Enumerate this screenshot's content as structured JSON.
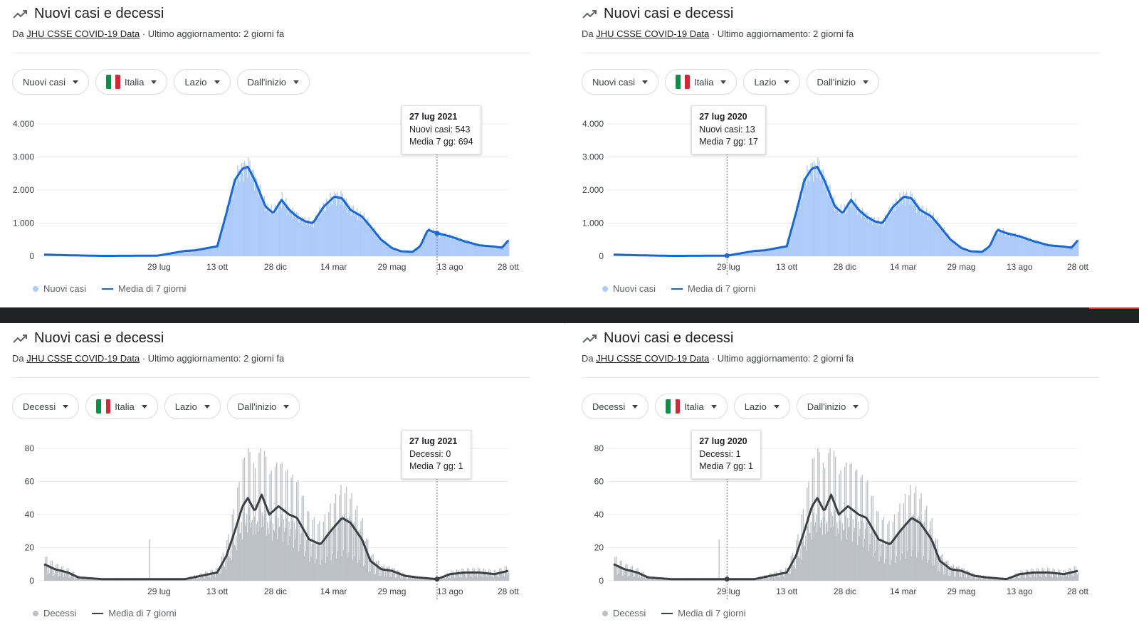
{
  "panels": [
    {
      "title": "Nuovi casi e decessi",
      "source_prefix": "Da",
      "source_link": "JHU CSSE COVID-19 Data",
      "updated": "· Ultimo aggiornamento: 2 giorni fa",
      "filters": [
        "Nuovi casi",
        "Italia",
        "Lazio",
        "Dall'inizio"
      ],
      "tooltip": {
        "date": "27 lug 2021",
        "line1": "Nuovi casi: 543",
        "line2": "Media 7 gg: 694"
      },
      "legend": [
        "Nuovi casi",
        "Media di 7 giorni"
      ]
    },
    {
      "title": "Nuovi casi e decessi",
      "source_prefix": "Da",
      "source_link": "JHU CSSE COVID-19 Data",
      "updated": "· Ultimo aggiornamento: 2 giorni fa",
      "filters": [
        "Nuovi casi",
        "Italia",
        "Lazio",
        "Dall'inizio"
      ],
      "tooltip": {
        "date": "27 lug 2020",
        "line1": "Nuovi casi: 13",
        "line2": "Media 7 gg: 17"
      },
      "legend": [
        "Nuovi casi",
        "Media di 7 giorni"
      ]
    },
    {
      "title": "Nuovi casi e decessi",
      "source_prefix": "Da",
      "source_link": "JHU CSSE COVID-19 Data",
      "updated": "· Ultimo aggiornamento: 2 giorni fa",
      "filters": [
        "Decessi",
        "Italia",
        "Lazio",
        "Dall'inizio"
      ],
      "tooltip": {
        "date": "27 lug 2021",
        "line1": "Decessi: 0",
        "line2": "Media 7 gg: 1"
      },
      "legend": [
        "Decessi",
        "Media di 7 giorni"
      ]
    },
    {
      "title": "Nuovi casi e decessi",
      "source_prefix": "Da",
      "source_link": "JHU CSSE COVID-19 Data",
      "updated": "· Ultimo aggiornamento: 2 giorni fa",
      "filters": [
        "Decessi",
        "Italia",
        "Lazio",
        "Dall'inizio"
      ],
      "tooltip": {
        "date": "27 lug 2020",
        "line1": "Decessi: 1",
        "line2": "Media 7 gg: 1"
      },
      "legend": [
        "Decessi",
        "Media di 7 giorni"
      ]
    }
  ],
  "colors": {
    "cases_bar": "#aecbfa",
    "cases_line": "#1967d2",
    "deaths_bar": "#bdc1c6",
    "deaths_line": "#3c4043",
    "flag": [
      "#009246",
      "#ffffff",
      "#ce2b37"
    ]
  },
  "icons": {
    "trend": "trending-up-icon",
    "dropdown": "caret-down-icon",
    "flag": "italy-flag-icon"
  },
  "chart_data": [
    {
      "type": "area",
      "series": [
        {
          "name": "Nuovi casi",
          "kind": "bars"
        },
        {
          "name": "Media di 7 giorni",
          "kind": "line",
          "points": [
            [
              "2020-03-01",
              50
            ],
            [
              "2020-04-01",
              30
            ],
            [
              "2020-05-15",
              10
            ],
            [
              "2020-07-27",
              17
            ],
            [
              "2020-09-01",
              160
            ],
            [
              "2020-09-15",
              180
            ],
            [
              "2020-10-13",
              300
            ],
            [
              "2020-10-25",
              1300
            ],
            [
              "2020-11-05",
              2300
            ],
            [
              "2020-11-15",
              2650
            ],
            [
              "2020-11-22",
              2700
            ],
            [
              "2020-12-01",
              2300
            ],
            [
              "2020-12-15",
              1500
            ],
            [
              "2020-12-25",
              1300
            ],
            [
              "2021-01-05",
              1700
            ],
            [
              "2021-01-15",
              1400
            ],
            [
              "2021-01-25",
              1200
            ],
            [
              "2021-02-05",
              1050
            ],
            [
              "2021-02-15",
              1000
            ],
            [
              "2021-03-01",
              1500
            ],
            [
              "2021-03-15",
              1800
            ],
            [
              "2021-03-25",
              1750
            ],
            [
              "2021-04-05",
              1400
            ],
            [
              "2021-04-20",
              1200
            ],
            [
              "2021-05-01",
              900
            ],
            [
              "2021-05-15",
              500
            ],
            [
              "2021-05-29",
              250
            ],
            [
              "2021-06-10",
              150
            ],
            [
              "2021-06-25",
              130
            ],
            [
              "2021-07-05",
              300
            ],
            [
              "2021-07-15",
              800
            ],
            [
              "2021-07-27",
              694
            ],
            [
              "2021-08-13",
              600
            ],
            [
              "2021-09-01",
              450
            ],
            [
              "2021-09-20",
              330
            ],
            [
              "2021-10-10",
              290
            ],
            [
              "2021-10-20",
              260
            ],
            [
              "2021-10-28",
              480
            ]
          ]
        }
      ],
      "x_range": [
        "2020-03-01",
        "2021-10-28"
      ],
      "x_ticks": [
        "29 lug",
        "13 ott",
        "28 dic",
        "14 mar",
        "29 mag",
        "13 ago",
        "28 ott"
      ],
      "y_ticks": [
        "0",
        "1.000",
        "2.000",
        "3.000",
        "4.000"
      ],
      "ylim": [
        0,
        4000
      ],
      "grid": true,
      "legend": "bottom-left",
      "highlight": "2021-07-27"
    },
    {
      "type": "area",
      "series": [
        {
          "name": "Nuovi casi",
          "kind": "bars"
        },
        {
          "name": "Media di 7 giorni",
          "kind": "line",
          "points": [
            [
              "2020-03-01",
              50
            ],
            [
              "2020-04-01",
              30
            ],
            [
              "2020-05-15",
              10
            ],
            [
              "2020-07-27",
              17
            ],
            [
              "2020-09-01",
              160
            ],
            [
              "2020-09-15",
              180
            ],
            [
              "2020-10-13",
              300
            ],
            [
              "2020-10-25",
              1300
            ],
            [
              "2020-11-05",
              2300
            ],
            [
              "2020-11-15",
              2650
            ],
            [
              "2020-11-22",
              2700
            ],
            [
              "2020-12-01",
              2300
            ],
            [
              "2020-12-15",
              1500
            ],
            [
              "2020-12-25",
              1300
            ],
            [
              "2021-01-05",
              1700
            ],
            [
              "2021-01-15",
              1400
            ],
            [
              "2021-01-25",
              1200
            ],
            [
              "2021-02-05",
              1050
            ],
            [
              "2021-02-15",
              1000
            ],
            [
              "2021-03-01",
              1500
            ],
            [
              "2021-03-15",
              1800
            ],
            [
              "2021-03-25",
              1750
            ],
            [
              "2021-04-05",
              1400
            ],
            [
              "2021-04-20",
              1200
            ],
            [
              "2021-05-01",
              900
            ],
            [
              "2021-05-15",
              500
            ],
            [
              "2021-05-29",
              250
            ],
            [
              "2021-06-10",
              150
            ],
            [
              "2021-06-25",
              130
            ],
            [
              "2021-07-05",
              300
            ],
            [
              "2021-07-15",
              800
            ],
            [
              "2021-07-27",
              694
            ],
            [
              "2021-08-13",
              600
            ],
            [
              "2021-09-01",
              450
            ],
            [
              "2021-09-20",
              330
            ],
            [
              "2021-10-10",
              290
            ],
            [
              "2021-10-20",
              260
            ],
            [
              "2021-10-28",
              480
            ]
          ]
        }
      ],
      "x_range": [
        "2020-03-01",
        "2021-10-28"
      ],
      "x_ticks": [
        "29 lug",
        "13 ott",
        "28 dic",
        "14 mar",
        "29 mag",
        "13 ago",
        "28 ott"
      ],
      "y_ticks": [
        "0",
        "1.000",
        "2.000",
        "3.000",
        "4.000"
      ],
      "ylim": [
        0,
        4000
      ],
      "grid": true,
      "legend": "bottom-left",
      "highlight": "2020-07-27"
    },
    {
      "type": "area",
      "series": [
        {
          "name": "Decessi",
          "kind": "bars"
        },
        {
          "name": "Media di 7 giorni",
          "kind": "line",
          "points": [
            [
              "2020-03-01",
              10
            ],
            [
              "2020-03-15",
              7
            ],
            [
              "2020-04-01",
              5
            ],
            [
              "2020-04-15",
              2
            ],
            [
              "2020-05-15",
              1
            ],
            [
              "2020-07-27",
              1
            ],
            [
              "2020-09-01",
              1
            ],
            [
              "2020-10-13",
              5
            ],
            [
              "2020-10-25",
              15
            ],
            [
              "2020-11-05",
              30
            ],
            [
              "2020-11-15",
              45
            ],
            [
              "2020-11-22",
              50
            ],
            [
              "2020-12-01",
              42
            ],
            [
              "2020-12-10",
              52
            ],
            [
              "2020-12-20",
              40
            ],
            [
              "2021-01-01",
              45
            ],
            [
              "2021-01-15",
              40
            ],
            [
              "2021-01-25",
              38
            ],
            [
              "2021-02-10",
              25
            ],
            [
              "2021-02-25",
              22
            ],
            [
              "2021-03-10",
              30
            ],
            [
              "2021-03-25",
              38
            ],
            [
              "2021-04-05",
              35
            ],
            [
              "2021-04-20",
              25
            ],
            [
              "2021-05-01",
              12
            ],
            [
              "2021-05-15",
              7
            ],
            [
              "2021-05-29",
              6
            ],
            [
              "2021-06-15",
              3
            ],
            [
              "2021-07-01",
              2
            ],
            [
              "2021-07-27",
              1
            ],
            [
              "2021-08-13",
              4
            ],
            [
              "2021-09-01",
              5
            ],
            [
              "2021-09-20",
              5
            ],
            [
              "2021-10-10",
              4
            ],
            [
              "2021-10-28",
              6
            ]
          ]
        }
      ],
      "x_range": [
        "2020-03-01",
        "2021-10-28"
      ],
      "x_ticks": [
        "29 lug",
        "13 ott",
        "28 dic",
        "14 mar",
        "29 mag",
        "13 ago",
        "28 ott"
      ],
      "y_ticks": [
        "0",
        "20",
        "40",
        "60",
        "80"
      ],
      "ylim": [
        0,
        80
      ],
      "grid": true,
      "legend": "bottom-left",
      "highlight": "2021-07-27"
    },
    {
      "type": "area",
      "series": [
        {
          "name": "Decessi",
          "kind": "bars"
        },
        {
          "name": "Media di 7 giorni",
          "kind": "line",
          "points": [
            [
              "2020-03-01",
              10
            ],
            [
              "2020-03-15",
              7
            ],
            [
              "2020-04-01",
              5
            ],
            [
              "2020-04-15",
              2
            ],
            [
              "2020-05-15",
              1
            ],
            [
              "2020-07-27",
              1
            ],
            [
              "2020-09-01",
              1
            ],
            [
              "2020-10-13",
              5
            ],
            [
              "2020-10-25",
              15
            ],
            [
              "2020-11-05",
              30
            ],
            [
              "2020-11-15",
              45
            ],
            [
              "2020-11-22",
              50
            ],
            [
              "2020-12-01",
              42
            ],
            [
              "2020-12-10",
              52
            ],
            [
              "2020-12-20",
              40
            ],
            [
              "2021-01-01",
              45
            ],
            [
              "2021-01-15",
              40
            ],
            [
              "2021-01-25",
              38
            ],
            [
              "2021-02-10",
              25
            ],
            [
              "2021-02-25",
              22
            ],
            [
              "2021-03-10",
              30
            ],
            [
              "2021-03-25",
              38
            ],
            [
              "2021-04-05",
              35
            ],
            [
              "2021-04-20",
              25
            ],
            [
              "2021-05-01",
              12
            ],
            [
              "2021-05-15",
              7
            ],
            [
              "2021-05-29",
              6
            ],
            [
              "2021-06-15",
              3
            ],
            [
              "2021-07-01",
              2
            ],
            [
              "2021-07-27",
              1
            ],
            [
              "2021-08-13",
              4
            ],
            [
              "2021-09-01",
              5
            ],
            [
              "2021-09-20",
              5
            ],
            [
              "2021-10-10",
              4
            ],
            [
              "2021-10-28",
              6
            ]
          ]
        }
      ],
      "x_range": [
        "2020-03-01",
        "2021-10-28"
      ],
      "x_ticks": [
        "29 lug",
        "13 ott",
        "28 dic",
        "14 mar",
        "29 mag",
        "13 ago",
        "28 ott"
      ],
      "y_ticks": [
        "0",
        "20",
        "40",
        "60",
        "80"
      ],
      "ylim": [
        0,
        80
      ],
      "grid": true,
      "legend": "bottom-left",
      "highlight": "2020-07-27"
    }
  ]
}
